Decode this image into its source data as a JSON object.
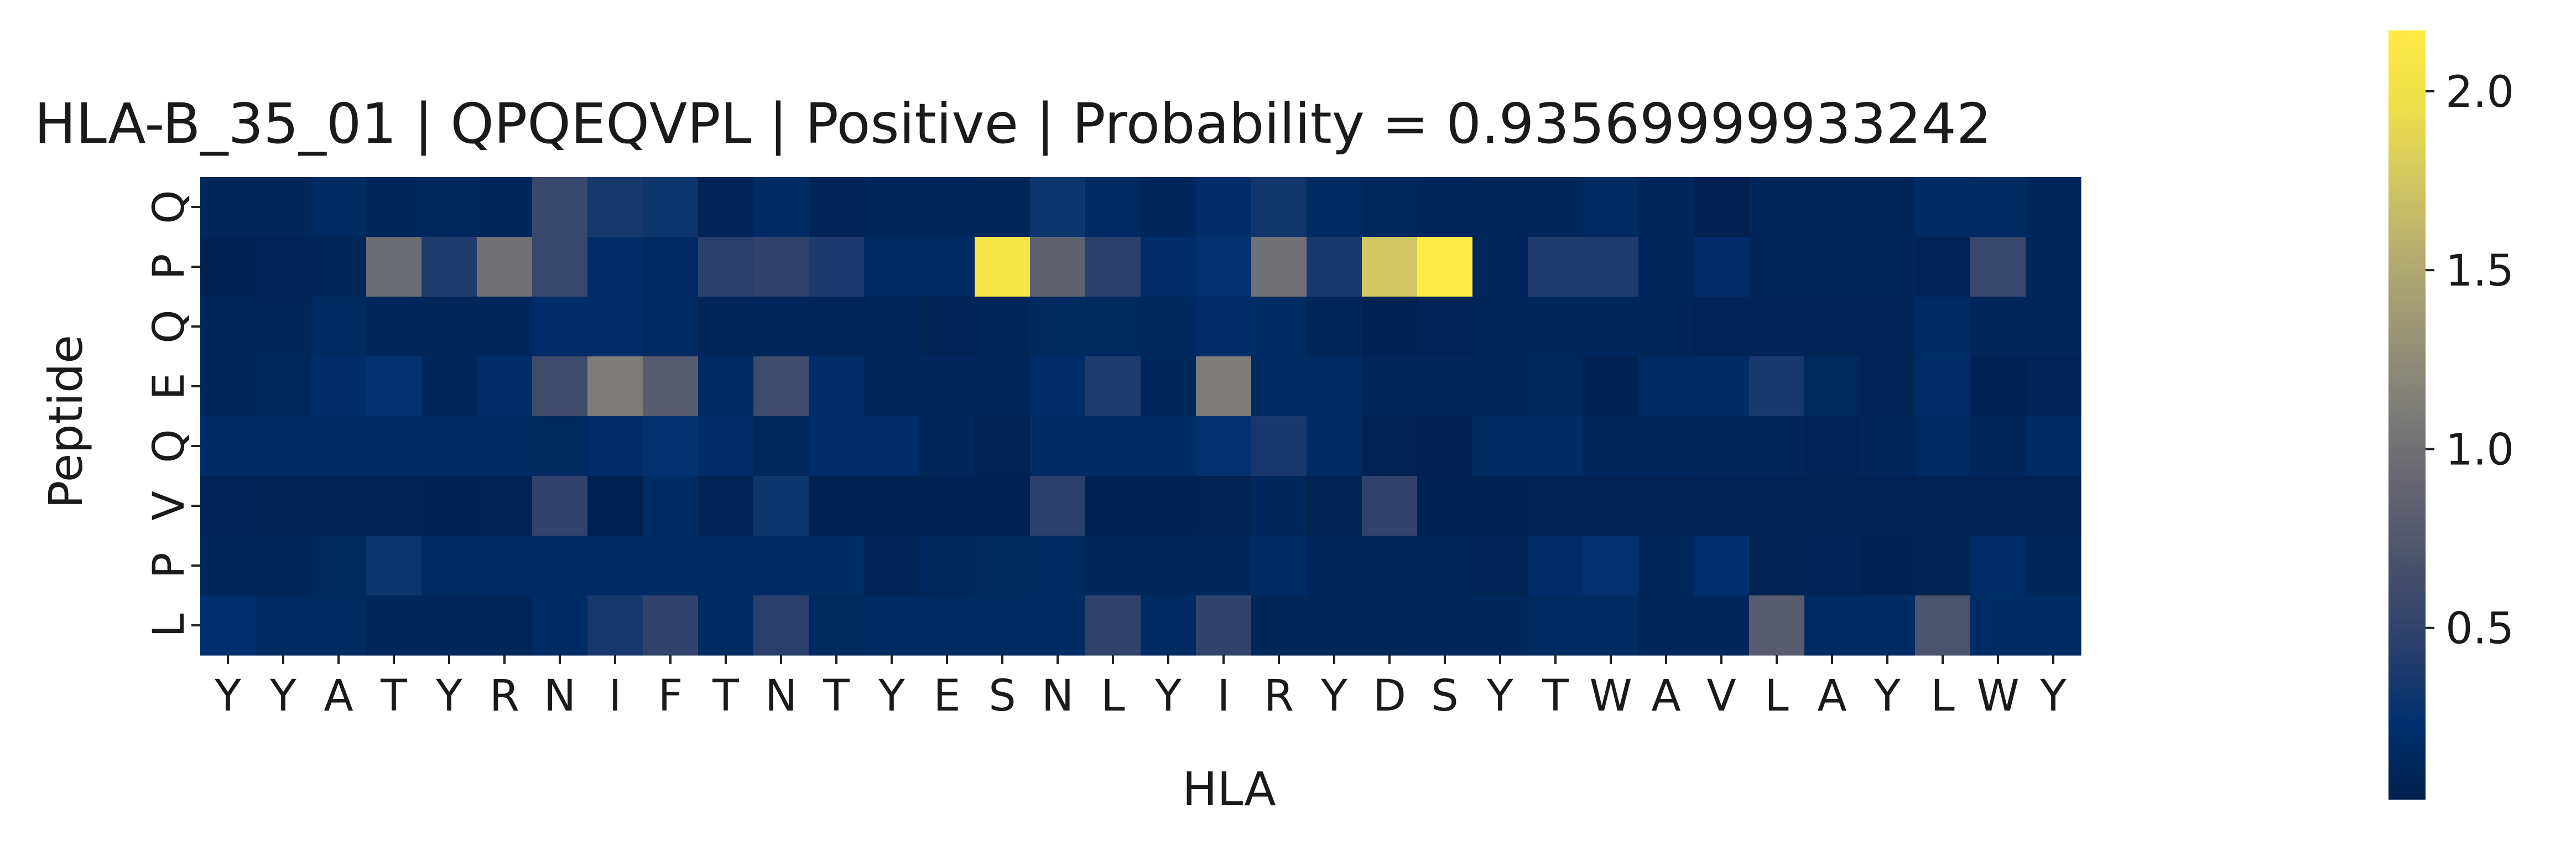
{
  "chart_data": {
    "type": "heatmap",
    "title": "HLA-B_35_01 | QPQEQVPL | Positive | Probability = 0.93569999933242",
    "xlabel": "HLA",
    "ylabel": "Peptide",
    "x_categories": [
      "Y",
      "Y",
      "A",
      "T",
      "Y",
      "R",
      "N",
      "I",
      "F",
      "T",
      "N",
      "T",
      "Y",
      "E",
      "S",
      "N",
      "L",
      "Y",
      "I",
      "R",
      "Y",
      "D",
      "S",
      "Y",
      "T",
      "W",
      "A",
      "V",
      "L",
      "A",
      "Y",
      "L",
      "W",
      "Y"
    ],
    "y_categories": [
      "Q",
      "P",
      "Q",
      "E",
      "Q",
      "V",
      "P",
      "L"
    ],
    "colormap": "cividis",
    "colorbar_range": [
      0.02,
      2.17
    ],
    "colorbar_ticks": [
      "0.5",
      "1.0",
      "1.5",
      "2.0"
    ],
    "colorbar_tick_values": [
      0.5,
      1.0,
      1.5,
      2.0
    ],
    "values": [
      [
        0.1,
        0.1,
        0.15,
        0.12,
        0.13,
        0.12,
        0.55,
        0.35,
        0.3,
        0.08,
        0.18,
        0.07,
        0.12,
        0.12,
        0.09,
        0.3,
        0.15,
        0.12,
        0.2,
        0.32,
        0.15,
        0.13,
        0.12,
        0.1,
        0.1,
        0.15,
        0.12,
        0.04,
        0.1,
        0.1,
        0.1,
        0.18,
        0.15,
        0.12
      ],
      [
        0.05,
        0.07,
        0.09,
        0.95,
        0.4,
        1.0,
        0.55,
        0.2,
        0.15,
        0.45,
        0.5,
        0.38,
        0.15,
        0.15,
        2.05,
        0.85,
        0.45,
        0.2,
        0.25,
        1.0,
        0.35,
        1.75,
        2.17,
        0.12,
        0.4,
        0.4,
        0.12,
        0.2,
        0.1,
        0.1,
        0.1,
        0.08,
        0.55,
        0.1
      ],
      [
        0.12,
        0.1,
        0.15,
        0.1,
        0.1,
        0.12,
        0.2,
        0.2,
        0.15,
        0.1,
        0.1,
        0.1,
        0.12,
        0.08,
        0.1,
        0.14,
        0.14,
        0.13,
        0.2,
        0.18,
        0.1,
        0.05,
        0.08,
        0.1,
        0.12,
        0.12,
        0.1,
        0.07,
        0.08,
        0.08,
        0.08,
        0.18,
        0.1,
        0.1
      ],
      [
        0.12,
        0.13,
        0.2,
        0.25,
        0.12,
        0.2,
        0.6,
        1.1,
        0.8,
        0.15,
        0.6,
        0.2,
        0.12,
        0.12,
        0.1,
        0.2,
        0.4,
        0.12,
        1.1,
        0.15,
        0.15,
        0.1,
        0.1,
        0.12,
        0.13,
        0.05,
        0.15,
        0.18,
        0.35,
        0.14,
        0.07,
        0.2,
        0.05,
        0.07
      ],
      [
        0.18,
        0.18,
        0.18,
        0.16,
        0.16,
        0.15,
        0.14,
        0.2,
        0.25,
        0.2,
        0.13,
        0.2,
        0.2,
        0.1,
        0.06,
        0.18,
        0.18,
        0.18,
        0.25,
        0.35,
        0.15,
        0.06,
        0.04,
        0.15,
        0.18,
        0.12,
        0.12,
        0.1,
        0.1,
        0.08,
        0.1,
        0.15,
        0.1,
        0.15
      ],
      [
        0.07,
        0.06,
        0.06,
        0.06,
        0.05,
        0.06,
        0.5,
        0.05,
        0.18,
        0.07,
        0.3,
        0.05,
        0.05,
        0.05,
        0.05,
        0.45,
        0.05,
        0.05,
        0.06,
        0.12,
        0.06,
        0.5,
        0.05,
        0.05,
        0.06,
        0.06,
        0.06,
        0.06,
        0.06,
        0.06,
        0.06,
        0.06,
        0.06,
        0.06
      ],
      [
        0.1,
        0.1,
        0.14,
        0.3,
        0.18,
        0.18,
        0.15,
        0.15,
        0.15,
        0.18,
        0.18,
        0.18,
        0.08,
        0.13,
        0.14,
        0.15,
        0.1,
        0.12,
        0.12,
        0.18,
        0.12,
        0.12,
        0.1,
        0.07,
        0.2,
        0.25,
        0.1,
        0.22,
        0.06,
        0.07,
        0.05,
        0.06,
        0.2,
        0.1
      ],
      [
        0.22,
        0.15,
        0.15,
        0.12,
        0.12,
        0.1,
        0.18,
        0.35,
        0.5,
        0.15,
        0.45,
        0.14,
        0.15,
        0.15,
        0.15,
        0.18,
        0.5,
        0.15,
        0.5,
        0.1,
        0.1,
        0.1,
        0.12,
        0.12,
        0.15,
        0.15,
        0.12,
        0.12,
        0.8,
        0.18,
        0.18,
        0.7,
        0.18,
        0.18
      ]
    ]
  }
}
